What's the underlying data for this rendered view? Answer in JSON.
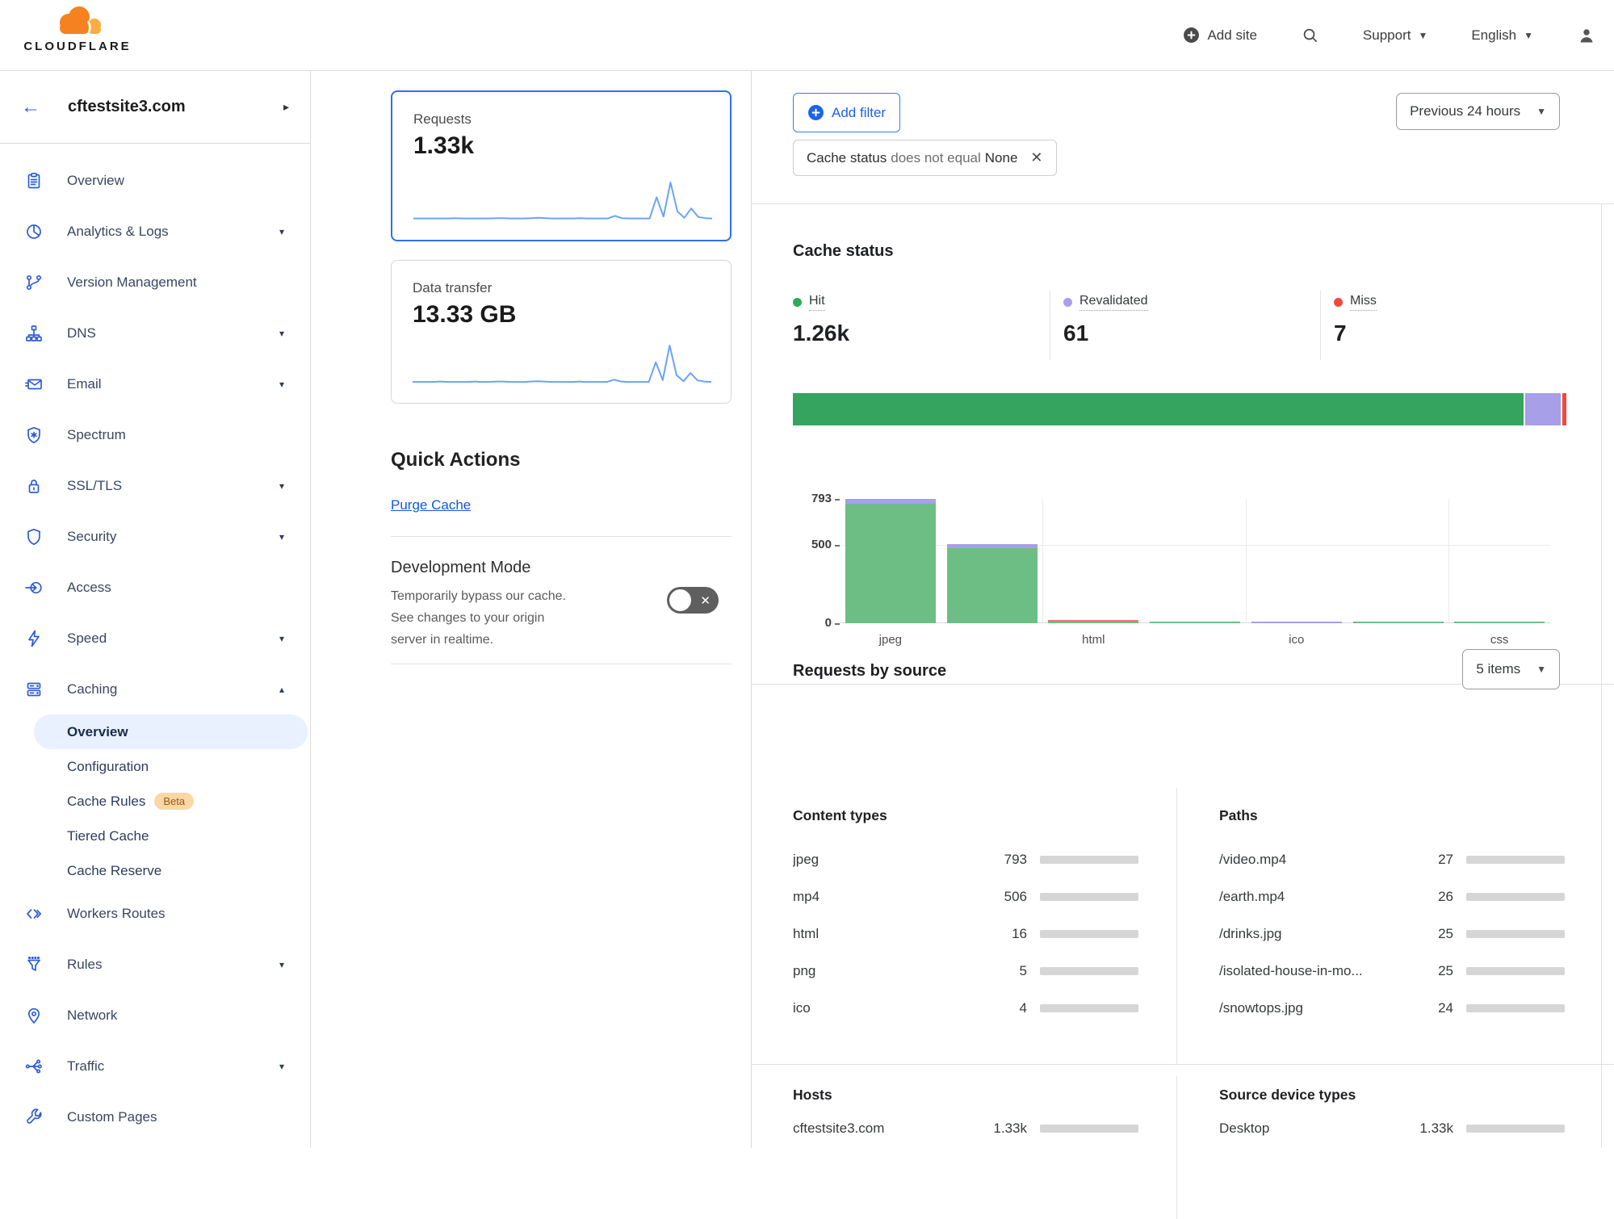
{
  "header": {
    "logo_text": "CLOUDFLARE",
    "add_site": "Add site",
    "support": "Support",
    "language": "English"
  },
  "sidebar": {
    "site": "cftestsite3.com",
    "items": [
      {
        "label": "Overview",
        "icon": "overview-icon"
      },
      {
        "label": "Analytics & Logs",
        "icon": "analytics-icon",
        "expandable": true
      },
      {
        "label": "Version Management",
        "icon": "version-icon"
      },
      {
        "label": "DNS",
        "icon": "dns-icon",
        "expandable": true
      },
      {
        "label": "Email",
        "icon": "email-icon",
        "expandable": true
      },
      {
        "label": "Spectrum",
        "icon": "spectrum-icon"
      },
      {
        "label": "SSL/TLS",
        "icon": "ssl-icon",
        "expandable": true
      },
      {
        "label": "Security",
        "icon": "security-icon",
        "expandable": true
      },
      {
        "label": "Access",
        "icon": "access-icon"
      },
      {
        "label": "Speed",
        "icon": "speed-icon",
        "expandable": true
      },
      {
        "label": "Caching",
        "icon": "caching-icon",
        "expandable": true,
        "expanded": true,
        "children": [
          {
            "label": "Overview",
            "active": true
          },
          {
            "label": "Configuration"
          },
          {
            "label": "Cache Rules",
            "badge": "Beta"
          },
          {
            "label": "Tiered Cache"
          },
          {
            "label": "Cache Reserve"
          }
        ]
      },
      {
        "label": "Workers Routes",
        "icon": "workers-icon"
      },
      {
        "label": "Rules",
        "icon": "rules-icon",
        "expandable": true
      },
      {
        "label": "Network",
        "icon": "network-icon"
      },
      {
        "label": "Traffic",
        "icon": "traffic-icon",
        "expandable": true
      },
      {
        "label": "Custom Pages",
        "icon": "custom-pages-icon"
      }
    ]
  },
  "metrics": {
    "requests": {
      "label": "Requests",
      "value": "1.33k",
      "selected": true,
      "sparkline": [
        3,
        3,
        3,
        3,
        3,
        3,
        4,
        3,
        3,
        3,
        3,
        3,
        4,
        4,
        3,
        3,
        3,
        4,
        5,
        4,
        3,
        3,
        3,
        3,
        4,
        3,
        3,
        3,
        3,
        10,
        4,
        3,
        3,
        3,
        3,
        60,
        8,
        100,
        22,
        5,
        30,
        7,
        4,
        3
      ]
    },
    "data_transfer": {
      "label": "Data transfer",
      "value": "13.33 GB",
      "selected": false,
      "sparkline": [
        2,
        2,
        2,
        2,
        3,
        2,
        2,
        2,
        2,
        3,
        2,
        2,
        3,
        3,
        2,
        2,
        2,
        3,
        4,
        3,
        2,
        2,
        2,
        2,
        3,
        2,
        2,
        2,
        2,
        8,
        3,
        2,
        2,
        2,
        2,
        55,
        7,
        100,
        20,
        4,
        26,
        6,
        3,
        2
      ]
    }
  },
  "quick_actions": {
    "title": "Quick Actions",
    "purge_cache": "Purge Cache",
    "development_mode": {
      "title": "Development Mode",
      "description": "Temporarily bypass our cache. See changes to your origin server in realtime.",
      "enabled": false
    }
  },
  "filters": {
    "add_filter": "Add filter",
    "chip": {
      "field": "Cache status",
      "operator": "does not equal",
      "value": "None"
    },
    "time_range": "Previous 24 hours"
  },
  "cache_status": {
    "title": "Cache status",
    "legend": [
      {
        "label": "Hit",
        "value": "1.26k",
        "numeric": 1260,
        "color": "#2dab57"
      },
      {
        "label": "Revalidated",
        "value": "61",
        "numeric": 61,
        "color": "#a79fef"
      },
      {
        "label": "Miss",
        "value": "7",
        "numeric": 7,
        "color": "#f4473c"
      }
    ]
  },
  "chart_data": [
    {
      "id": "cache-status-by-content-type",
      "type": "bar",
      "stacked": true,
      "categories": [
        "jpeg",
        "mp4",
        "html",
        "png",
        "ico",
        "",
        "css"
      ],
      "x_labels_shown": [
        "jpeg",
        "html",
        "ico",
        "css"
      ],
      "series": [
        {
          "name": "Hit",
          "color": "#6cbe85",
          "values": [
            760,
            480,
            9,
            5,
            0,
            2,
            2
          ]
        },
        {
          "name": "Revalidated",
          "color": "#a89fe9",
          "values": [
            33,
            26,
            0,
            0,
            4,
            0,
            0
          ]
        },
        {
          "name": "Miss",
          "color": "#f0746b",
          "values": [
            0,
            0,
            7,
            0,
            0,
            0,
            0
          ]
        }
      ],
      "ylim": [
        0,
        793
      ],
      "yticks": [
        0,
        500,
        793
      ],
      "grid": true,
      "legend_position": "none"
    },
    {
      "id": "cache-status-ratio",
      "type": "bar",
      "stacked": true,
      "series": [
        {
          "name": "Hit",
          "value": 1260,
          "color": "#35a45f"
        },
        {
          "name": "Revalidated",
          "value": 61,
          "color": "#a79fe8"
        },
        {
          "name": "Miss",
          "value": 7,
          "color": "#f4473c"
        }
      ]
    },
    {
      "id": "requests-sparkline",
      "type": "line",
      "color": "#6aa3f8",
      "values": [
        3,
        3,
        3,
        3,
        3,
        3,
        4,
        3,
        3,
        3,
        3,
        3,
        4,
        4,
        3,
        3,
        3,
        4,
        5,
        4,
        3,
        3,
        3,
        3,
        4,
        3,
        3,
        3,
        3,
        10,
        4,
        3,
        3,
        3,
        3,
        60,
        8,
        100,
        22,
        5,
        30,
        7,
        4,
        3
      ]
    },
    {
      "id": "data-transfer-sparkline",
      "type": "line",
      "color": "#6aa3f8",
      "values": [
        2,
        2,
        2,
        2,
        3,
        2,
        2,
        2,
        2,
        3,
        2,
        2,
        3,
        3,
        2,
        2,
        2,
        3,
        4,
        3,
        2,
        2,
        2,
        2,
        3,
        2,
        2,
        2,
        2,
        8,
        3,
        2,
        2,
        2,
        2,
        55,
        7,
        100,
        20,
        4,
        26,
        6,
        3,
        2
      ]
    }
  ],
  "requests_by_source": {
    "title": "Requests by source",
    "items_dropdown": "5 items",
    "total_requests": 1328,
    "bar_color": "#1672e6",
    "sections": [
      {
        "heading": "Content types",
        "items": [
          {
            "label": "jpeg",
            "display": "793",
            "value": 793
          },
          {
            "label": "mp4",
            "display": "506",
            "value": 506
          },
          {
            "label": "html",
            "display": "16",
            "value": 16
          },
          {
            "label": "png",
            "display": "5",
            "value": 5
          },
          {
            "label": "ico",
            "display": "4",
            "value": 4
          }
        ]
      },
      {
        "heading": "Paths",
        "items": [
          {
            "label": "/video.mp4",
            "display": "27",
            "value": 27
          },
          {
            "label": "/earth.mp4",
            "display": "26",
            "value": 26
          },
          {
            "label": "/drinks.jpg",
            "display": "25",
            "value": 25
          },
          {
            "label": "/isolated-house-in-mo...",
            "display": "25",
            "value": 25
          },
          {
            "label": "/snowtops.jpg",
            "display": "24",
            "value": 24
          }
        ]
      },
      {
        "heading": "Hosts",
        "items": [
          {
            "label": "cftestsite3.com",
            "display": "1.33k",
            "value": 1328
          }
        ]
      },
      {
        "heading": "Source device types",
        "items": [
          {
            "label": "Desktop",
            "display": "1.33k",
            "value": 1328
          }
        ]
      }
    ]
  },
  "colors": {
    "accent_blue": "#1a63ec",
    "sidebar_icon_blue": "#2d5cd6",
    "selected_card_border": "#2f6ff2",
    "hit_green": "#2dab57",
    "revalidated_purple": "#a79fef",
    "miss_red": "#f4473c",
    "usage_bar_blue": "#1672e6"
  }
}
